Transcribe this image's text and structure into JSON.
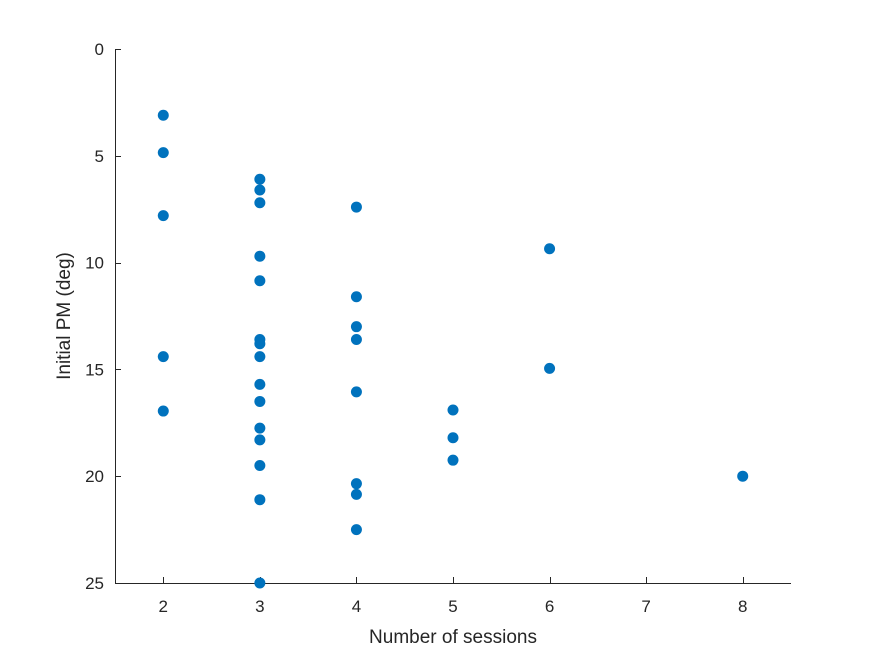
{
  "chart_data": {
    "type": "scatter",
    "title": "",
    "xlabel": "Number of sessions",
    "ylabel": "Initial PM (deg)",
    "xlim": [
      1.5,
      8.5
    ],
    "ylim": [
      0,
      25
    ],
    "y_reversed": true,
    "xticks": [
      2,
      3,
      4,
      5,
      6,
      7,
      8
    ],
    "yticks": [
      0,
      5,
      10,
      15,
      20,
      25
    ],
    "grid": false,
    "legend": "none",
    "marker_color": "#0072BD",
    "points": [
      {
        "x": 2,
        "y": 3.1
      },
      {
        "x": 2,
        "y": 4.85
      },
      {
        "x": 2,
        "y": 7.8
      },
      {
        "x": 2,
        "y": 14.4
      },
      {
        "x": 2,
        "y": 16.95
      },
      {
        "x": 3,
        "y": 6.1
      },
      {
        "x": 3,
        "y": 6.6
      },
      {
        "x": 3,
        "y": 7.2
      },
      {
        "x": 3,
        "y": 9.7
      },
      {
        "x": 3,
        "y": 10.85
      },
      {
        "x": 3,
        "y": 13.6
      },
      {
        "x": 3,
        "y": 13.8
      },
      {
        "x": 3,
        "y": 14.4
      },
      {
        "x": 3,
        "y": 15.7
      },
      {
        "x": 3,
        "y": 16.5
      },
      {
        "x": 3,
        "y": 17.75
      },
      {
        "x": 3,
        "y": 18.3
      },
      {
        "x": 3,
        "y": 19.5
      },
      {
        "x": 3,
        "y": 21.1
      },
      {
        "x": 3,
        "y": 25.0
      },
      {
        "x": 4,
        "y": 7.4
      },
      {
        "x": 4,
        "y": 11.6
      },
      {
        "x": 4,
        "y": 13.0
      },
      {
        "x": 4,
        "y": 13.6
      },
      {
        "x": 4,
        "y": 16.05
      },
      {
        "x": 4,
        "y": 20.35
      },
      {
        "x": 4,
        "y": 20.85
      },
      {
        "x": 4,
        "y": 22.5
      },
      {
        "x": 5,
        "y": 16.9
      },
      {
        "x": 5,
        "y": 18.2
      },
      {
        "x": 5,
        "y": 19.25
      },
      {
        "x": 6,
        "y": 9.35
      },
      {
        "x": 6,
        "y": 14.95
      },
      {
        "x": 8,
        "y": 20.0
      }
    ]
  }
}
